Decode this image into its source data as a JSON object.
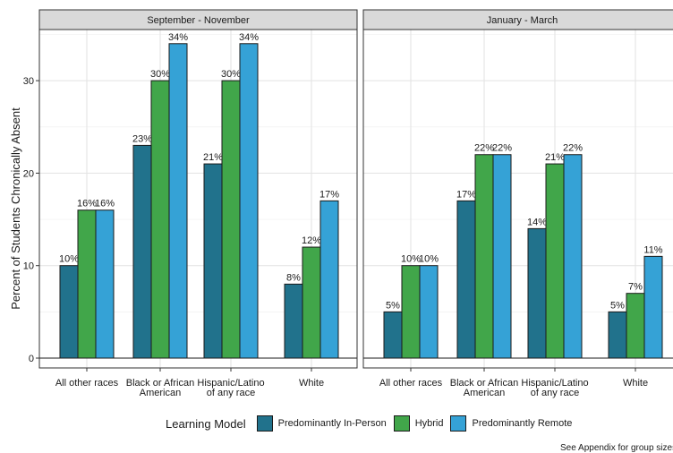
{
  "chart_data": {
    "type": "bar",
    "ylabel": "Percent of Students Chronically Absent",
    "ylim": [
      0,
      35
    ],
    "yticks": [
      0,
      10,
      20,
      30
    ],
    "grid": true,
    "legend_title": "Learning Model",
    "legend_position": "bottom",
    "colors": {
      "Predominantly In-Person": "#21728c",
      "Hybrid": "#41a64a",
      "Predominantly Remote": "#35a2d6"
    },
    "panels": [
      {
        "title": "September - November",
        "categories": [
          "All other races",
          "Black or African\nAmerican",
          "Hispanic/Latino\nof any race",
          "White"
        ],
        "series": [
          {
            "name": "Predominantly In-Person",
            "values": [
              10,
              23,
              21,
              8
            ]
          },
          {
            "name": "Hybrid",
            "values": [
              16,
              30,
              30,
              12
            ]
          },
          {
            "name": "Predominantly Remote",
            "values": [
              16,
              34,
              34,
              17
            ]
          }
        ]
      },
      {
        "title": "January - March",
        "categories": [
          "All other races",
          "Black or African\nAmerican",
          "Hispanic/Latino\nof any race",
          "White"
        ],
        "series": [
          {
            "name": "Predominantly In-Person",
            "values": [
              5,
              17,
              14,
              5
            ]
          },
          {
            "name": "Hybrid",
            "values": [
              10,
              22,
              21,
              7
            ]
          },
          {
            "name": "Predominantly Remote",
            "values": [
              10,
              22,
              22,
              11
            ]
          }
        ]
      }
    ]
  },
  "footnote": "See Appendix for group sizes"
}
